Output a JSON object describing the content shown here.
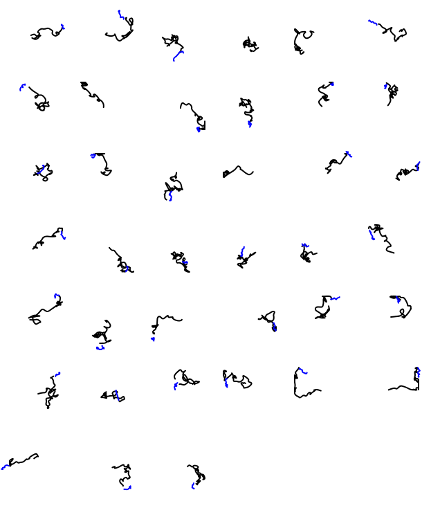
{
  "figure": {
    "description_type": "grid of trajectory sketches",
    "rows": 7,
    "columns": 6,
    "panel_count": 39,
    "colors": {
      "primary_trace": "#000000",
      "secondary_trace": "#0000ff",
      "background": "#ffffff"
    }
  },
  "panels": [
    {
      "id": 1,
      "blue": true,
      "seed": 11
    },
    {
      "id": 2,
      "blue": true,
      "seed": 12
    },
    {
      "id": 3,
      "blue": true,
      "seed": 13
    },
    {
      "id": 4,
      "blue": false,
      "seed": 14
    },
    {
      "id": 5,
      "blue": false,
      "seed": 15
    },
    {
      "id": 6,
      "blue": true,
      "seed": 16
    },
    {
      "id": 7,
      "blue": true,
      "seed": 21
    },
    {
      "id": 8,
      "blue": false,
      "seed": 22
    },
    {
      "id": 9,
      "blue": true,
      "seed": 23
    },
    {
      "id": 10,
      "blue": true,
      "seed": 24
    },
    {
      "id": 11,
      "blue": true,
      "seed": 25
    },
    {
      "id": 12,
      "blue": true,
      "seed": 26
    },
    {
      "id": 13,
      "blue": true,
      "seed": 31
    },
    {
      "id": 14,
      "blue": true,
      "seed": 32
    },
    {
      "id": 15,
      "blue": true,
      "seed": 33
    },
    {
      "id": 16,
      "blue": false,
      "seed": 34
    },
    {
      "id": 17,
      "blue": true,
      "seed": 35
    },
    {
      "id": 18,
      "blue": true,
      "seed": 36
    },
    {
      "id": 19,
      "blue": true,
      "seed": 41
    },
    {
      "id": 20,
      "blue": true,
      "seed": 42
    },
    {
      "id": 21,
      "blue": true,
      "seed": 43
    },
    {
      "id": 22,
      "blue": true,
      "seed": 44
    },
    {
      "id": 23,
      "blue": true,
      "seed": 45
    },
    {
      "id": 24,
      "blue": true,
      "seed": 46
    },
    {
      "id": 25,
      "blue": true,
      "seed": 51
    },
    {
      "id": 26,
      "blue": true,
      "seed": 52
    },
    {
      "id": 27,
      "blue": true,
      "seed": 53
    },
    {
      "id": 28,
      "blue": true,
      "seed": 54
    },
    {
      "id": 29,
      "blue": true,
      "seed": 55
    },
    {
      "id": 30,
      "blue": true,
      "seed": 56
    },
    {
      "id": 31,
      "blue": true,
      "seed": 61
    },
    {
      "id": 32,
      "blue": true,
      "seed": 62
    },
    {
      "id": 33,
      "blue": true,
      "seed": 63
    },
    {
      "id": 34,
      "blue": true,
      "seed": 64
    },
    {
      "id": 35,
      "blue": true,
      "seed": 65
    },
    {
      "id": 36,
      "blue": true,
      "seed": 66
    },
    {
      "id": 37,
      "blue": true,
      "seed": 71
    },
    {
      "id": 38,
      "blue": true,
      "seed": 72
    },
    {
      "id": 39,
      "blue": true,
      "seed": 73
    }
  ]
}
